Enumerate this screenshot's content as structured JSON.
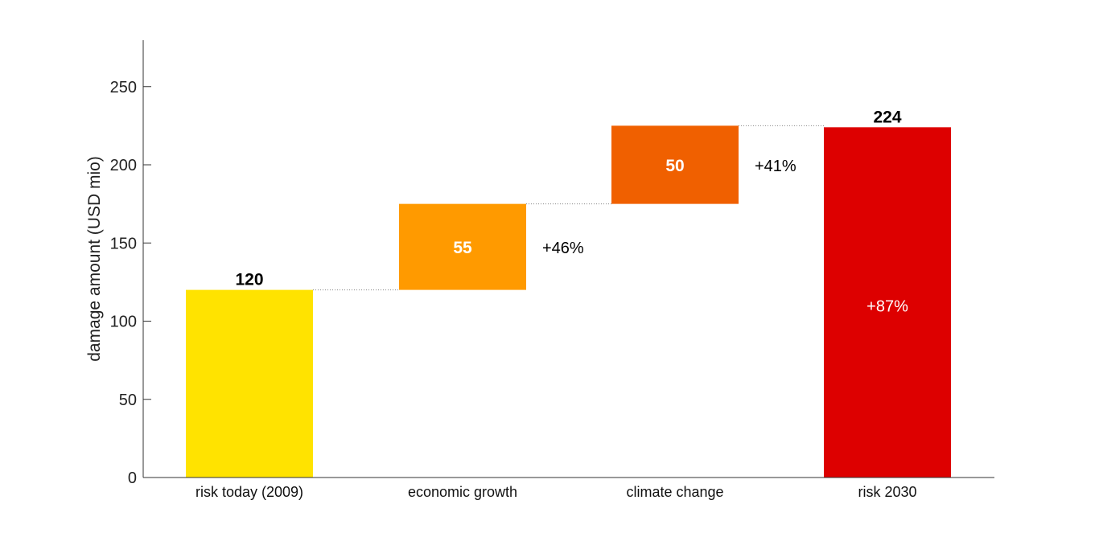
{
  "chart_data": {
    "type": "bar",
    "variant": "waterfall",
    "categories": [
      "risk today (2009)",
      "economic growth",
      "climate change",
      "risk 2030"
    ],
    "bars": [
      {
        "category": "risk today (2009)",
        "kind": "total",
        "base": 0,
        "value": 120,
        "label": "120",
        "color": "#FFE300"
      },
      {
        "category": "economic growth",
        "kind": "increment",
        "base": 120,
        "value": 55,
        "label": "55",
        "percent_label": "+46%",
        "color": "#FF9A00"
      },
      {
        "category": "climate change",
        "kind": "increment",
        "base": 175,
        "value": 50,
        "label": "50",
        "percent_label": "+41%",
        "color": "#F06000"
      },
      {
        "category": "risk 2030",
        "kind": "total",
        "base": 0,
        "value": 224,
        "label": "224",
        "percent_label": "+87%",
        "color": "#DD0000"
      }
    ],
    "ylabel": "damage amount (USD mio)",
    "xlabel": "",
    "ylim": [
      0,
      280
    ],
    "yticks": [
      0,
      50,
      100,
      150,
      200,
      250
    ],
    "grid": false,
    "connector_lines": true,
    "legend": "none"
  }
}
